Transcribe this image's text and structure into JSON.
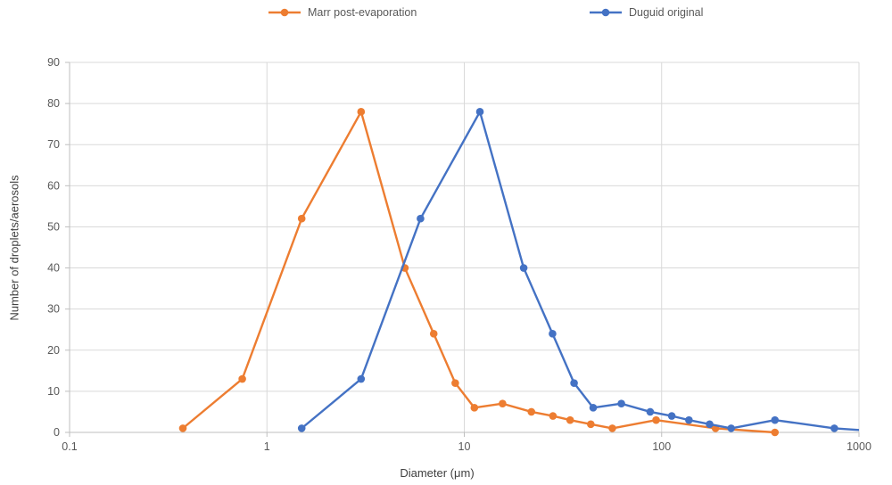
{
  "chart_data": {
    "type": "line",
    "title": "",
    "xlabel": "Diameter (μm)",
    "ylabel": "Number of droplets/aerosols",
    "x_scale": "log",
    "xlim": [
      0.1,
      1000
    ],
    "ylim": [
      0,
      90
    ],
    "x_ticks": [
      0.1,
      1,
      10,
      100,
      1000
    ],
    "x_tick_labels": [
      "0.1",
      "1",
      "10",
      "100",
      "1000"
    ],
    "y_ticks": [
      0,
      10,
      20,
      30,
      40,
      50,
      60,
      70,
      80,
      90
    ],
    "grid": true,
    "legend_position": "top",
    "series": [
      {
        "name": "Marr post-evaporation",
        "color": "#ED7D31",
        "x": [
          0.375,
          0.75,
          1.5,
          3,
          5,
          7,
          9,
          11.25,
          15.625,
          21.875,
          28.125,
          34.375,
          43.75,
          56.25,
          93.75,
          187.5,
          375
        ],
        "y": [
          1,
          13,
          52,
          78,
          40,
          24,
          12,
          6,
          7,
          5,
          4,
          3,
          2,
          1,
          3,
          1,
          0
        ]
      },
      {
        "name": "Duguid original",
        "color": "#4472C4",
        "x": [
          1.5,
          3,
          6,
          12,
          20,
          28,
          36,
          45,
          62.5,
          87.5,
          112.5,
          137.5,
          175,
          225,
          375,
          750,
          1500
        ],
        "y": [
          1,
          13,
          52,
          78,
          40,
          24,
          12,
          6,
          7,
          5,
          4,
          3,
          2,
          1,
          3,
          1,
          0
        ]
      }
    ],
    "colors": {
      "gridline": "#D9D9D9",
      "axis_line": "#BFBFBF",
      "tick_text": "#595959",
      "axis_title_text": "#404040"
    }
  }
}
